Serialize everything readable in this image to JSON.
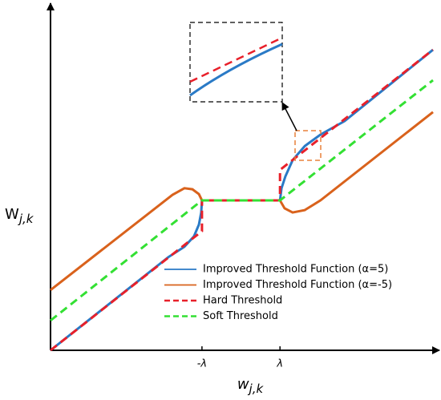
{
  "chart_data": {
    "type": "line",
    "y_label": "W",
    "y_label_sub": "j,k",
    "x_label": "w",
    "x_label_sub": "j,k",
    "xlim": [
      0,
      100
    ],
    "ylim": [
      0,
      100
    ],
    "xticks": [
      {
        "value": 39.6,
        "label": "-λ"
      },
      {
        "value": 60,
        "label": "λ"
      }
    ],
    "series": [
      {
        "name": "Improved Threshold Function (α=5)",
        "color": "#2a7ac6",
        "dash": false,
        "x": [
          0,
          30.8,
          35.0,
          37.5,
          38.8,
          39.4,
          39.6,
          60,
          60.4,
          61.4,
          63.3,
          66.5,
          70.6,
          76.9,
          100
        ],
        "values": [
          0,
          26.9,
          29.9,
          32.9,
          36.3,
          39.8,
          43.3,
          43.3,
          46.8,
          50.2,
          54.9,
          59.0,
          62.3,
          66.2,
          86.8
        ]
      },
      {
        "name": "Improved Threshold Function (α=-5)",
        "color": "#d9621c",
        "dash": false,
        "x": [
          0,
          31.9,
          35.0,
          37.1,
          38.8,
          39.6,
          60,
          61.2,
          63.3,
          66.5,
          70.6,
          100
        ],
        "values": [
          17.4,
          44.9,
          46.8,
          46.5,
          45.1,
          43.3,
          43.3,
          41.0,
          39.8,
          40.5,
          43.3,
          68.8
        ]
      },
      {
        "name": "Hard Threshold",
        "color": "#e8202a",
        "dash": true,
        "x": [
          0,
          39.6,
          39.6,
          60,
          60,
          100
        ],
        "values": [
          0,
          34.4,
          43.3,
          43.3,
          52.1,
          86.8
        ]
      },
      {
        "name": "Soft Threshold",
        "color": "#33e033",
        "dash": true,
        "x": [
          0,
          39.6,
          60,
          100
        ],
        "values": [
          8.6,
          43.3,
          43.3,
          78.0
        ]
      }
    ]
  }
}
